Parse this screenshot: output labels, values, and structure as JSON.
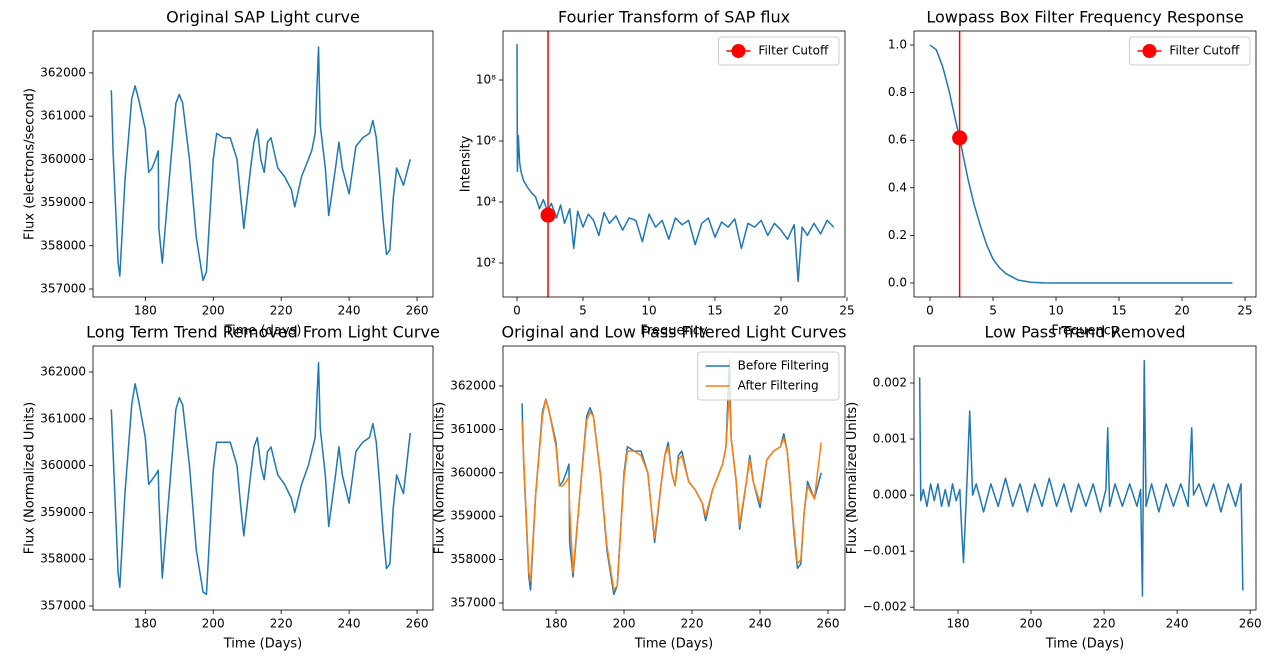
{
  "chart_data": [
    {
      "type": "line",
      "title": "Original SAP Light curve",
      "xlabel": "Time (days)",
      "ylabel": "Flux (electrons/second)",
      "xlim": [
        164.6,
        264.7
      ],
      "ylim": [
        356815,
        362970
      ],
      "xticks": [
        180,
        200,
        220,
        240,
        260
      ],
      "yticks": [
        357000,
        358000,
        359000,
        360000,
        361000,
        362000
      ],
      "series": [
        {
          "color": "#1f77b4",
          "x": [
            170,
            170.5,
            172,
            172.5,
            174,
            176,
            177,
            178,
            180,
            181,
            182,
            183,
            183.8,
            184,
            185,
            187,
            189,
            190,
            191,
            193,
            195,
            197,
            198,
            200,
            201,
            203,
            205,
            207,
            208,
            209,
            211,
            212,
            213,
            214,
            215,
            216,
            217,
            219,
            221,
            223,
            224,
            226,
            228,
            229,
            230,
            231,
            231.5,
            233,
            234,
            236,
            237,
            238,
            240,
            242,
            244,
            246,
            247,
            248,
            249,
            250,
            251,
            252,
            253,
            254,
            256,
            258
          ],
          "values": [
            361600,
            360200,
            357600,
            357300,
            359500,
            361400,
            361700,
            361400,
            360700,
            359700,
            359800,
            360000,
            360200,
            358400,
            357600,
            359500,
            361300,
            361500,
            361300,
            360000,
            358200,
            357200,
            357400,
            360000,
            360600,
            360500,
            360500,
            360000,
            359200,
            358400,
            359800,
            360400,
            360700,
            360000,
            359700,
            360400,
            360500,
            359800,
            359600,
            359300,
            358900,
            359600,
            360000,
            360200,
            360600,
            362600,
            360800,
            359800,
            358700,
            359800,
            360400,
            359800,
            359200,
            360300,
            360500,
            360600,
            360900,
            360500,
            359600,
            358600,
            357800,
            357900,
            359100,
            359800,
            359400,
            360000
          ]
        }
      ]
    },
    {
      "type": "line",
      "title": "Fourier Transform of SAP flux",
      "xlabel": "Frequency",
      "ylabel": "Intensity",
      "yscale": "log",
      "xlim": [
        -1.06,
        24.85
      ],
      "ylim": [
        7.67,
        4050000000
      ],
      "xticks": [
        0,
        5,
        10,
        15,
        20,
        25
      ],
      "yticks": [
        {
          "value": 100,
          "label": "10²"
        },
        {
          "value": 10000,
          "label": "10⁴"
        },
        {
          "value": 1000000,
          "label": "10⁶"
        },
        {
          "value": 100000000,
          "label": "10⁸"
        }
      ],
      "vline": 2.35,
      "vline_color": "red",
      "legend": "upper right",
      "series": [
        {
          "color": "#1f77b4",
          "x": [
            0,
            0.03,
            0.1,
            0.2,
            0.3,
            0.5,
            0.8,
            1.1,
            1.4,
            1.7,
            2.0,
            2.3,
            2.6,
            3.0,
            3.3,
            3.6,
            4.0,
            4.3,
            4.6,
            5.0,
            5.4,
            5.8,
            6.2,
            6.6,
            7.0,
            7.5,
            8,
            8.5,
            9,
            9.5,
            10,
            10.5,
            11,
            11.5,
            12,
            12.5,
            13,
            13.5,
            14,
            14.5,
            15,
            15.5,
            16,
            16.5,
            17,
            17.5,
            18,
            18.5,
            19,
            19.5,
            20,
            20.5,
            21,
            21.3,
            21.6,
            22,
            22.5,
            23,
            23.5,
            24
          ],
          "values": [
            1500000000,
            100000,
            1500000,
            200000,
            100000,
            50000,
            30000,
            20000,
            15000,
            6000,
            12000,
            5000,
            9000,
            3000,
            8000,
            2000,
            6000,
            300,
            5000,
            1500,
            4000,
            2500,
            800,
            4500,
            2000,
            3500,
            1200,
            3000,
            2500,
            500,
            4000,
            1500,
            2500,
            600,
            3000,
            1800,
            2500,
            400,
            2000,
            3000,
            700,
            2200,
            1500,
            2800,
            300,
            2000,
            1500,
            2500,
            800,
            2000,
            1200,
            600,
            1800,
            25,
            1500,
            800,
            2000,
            900,
            2500,
            1500
          ]
        },
        {
          "name": "Filter Cutoff",
          "color": "red",
          "marker": "o",
          "x": [
            2.35
          ],
          "values": [
            3700
          ]
        }
      ]
    },
    {
      "type": "line",
      "title": "Lowpass Box Filter Frequency Response",
      "xlabel": "Frequency",
      "xlim": [
        -1.27,
        25.87
      ],
      "ylim": [
        -0.059,
        1.059
      ],
      "xticks": [
        0,
        5,
        10,
        15,
        20,
        25
      ],
      "yticks": [
        {
          "value": 0,
          "label": "0.0"
        },
        0.2,
        0.4,
        0.6,
        0.8,
        {
          "value": 1,
          "label": "1.0"
        }
      ],
      "vline": 2.35,
      "vline_color": "red",
      "legend": "upper right",
      "series": [
        {
          "color": "#1f77b4",
          "x": [
            0,
            0.5,
            1,
            1.5,
            2,
            2.5,
            3,
            3.5,
            4,
            4.5,
            5,
            5.5,
            6,
            7,
            8,
            9,
            10,
            15,
            20,
            24
          ],
          "values": [
            1,
            0.98,
            0.91,
            0.81,
            0.69,
            0.57,
            0.44,
            0.33,
            0.24,
            0.16,
            0.1,
            0.065,
            0.04,
            0.012,
            0.003,
            0.0005,
            0,
            0,
            0,
            0
          ]
        },
        {
          "name": "Filter Cutoff",
          "color": "red",
          "marker": "o",
          "x": [
            2.35
          ],
          "values": [
            0.61
          ]
        }
      ]
    },
    {
      "type": "line",
      "title": "Long Term Trend Removed From Light Curve",
      "xlabel": "Time (Days)",
      "ylabel": "Flux (Normalized Units)",
      "xlim": [
        164.6,
        264.7
      ],
      "ylim": [
        356915,
        362556
      ],
      "xticks": [
        180,
        200,
        220,
        240,
        260
      ],
      "yticks": [
        357000,
        358000,
        359000,
        360000,
        361000,
        362000
      ],
      "series": [
        {
          "color": "#1f77b4",
          "x": [
            170,
            170.5,
            172,
            172.5,
            174,
            176,
            177,
            178,
            180,
            181,
            182,
            183,
            183.8,
            184,
            185,
            187,
            189,
            190,
            191,
            193,
            195,
            197,
            198,
            200,
            201,
            203,
            205,
            207,
            208,
            209,
            211,
            212,
            213,
            214,
            215,
            216,
            217,
            219,
            221,
            223,
            224,
            226,
            228,
            229,
            230,
            231,
            231.5,
            233,
            234,
            236,
            237,
            238,
            240,
            242,
            244,
            246,
            247,
            248,
            249,
            250,
            251,
            252,
            253,
            254,
            256,
            258
          ],
          "values": [
            361200,
            360300,
            357700,
            357400,
            359400,
            361300,
            361750,
            361400,
            360600,
            359600,
            359700,
            359800,
            359900,
            359300,
            357600,
            359400,
            361200,
            361450,
            361300,
            360000,
            358200,
            357300,
            357250,
            359900,
            360500,
            360500,
            360500,
            360000,
            359200,
            358500,
            359800,
            360400,
            360600,
            360000,
            359700,
            360300,
            360400,
            359800,
            359600,
            359300,
            359000,
            359600,
            360000,
            360300,
            360600,
            362200,
            360800,
            359800,
            358700,
            359800,
            360400,
            359800,
            359200,
            360300,
            360500,
            360600,
            360900,
            360500,
            359600,
            358600,
            357800,
            357900,
            359100,
            359800,
            359400,
            360700
          ]
        }
      ]
    },
    {
      "type": "line",
      "title": "Original and Low Pass Filtered Light Curves",
      "xlabel": "Time (Days)",
      "ylabel": "Flux (Normalized Units)",
      "xlim": [
        164.4,
        265
      ],
      "ylim": [
        356839,
        362922
      ],
      "xticks": [
        180,
        200,
        220,
        240,
        260
      ],
      "yticks": [
        357000,
        358000,
        359000,
        360000,
        361000,
        362000
      ],
      "legend": "upper right",
      "series": [
        {
          "name": "Before Filtering",
          "color": "#1f77b4",
          "x": [
            170,
            170.5,
            172,
            172.5,
            174,
            176,
            177,
            178,
            180,
            181,
            182,
            183,
            183.8,
            184,
            185,
            187,
            189,
            190,
            191,
            193,
            195,
            197,
            198,
            200,
            201,
            203,
            205,
            207,
            208,
            209,
            211,
            212,
            213,
            214,
            215,
            216,
            217,
            219,
            221,
            223,
            224,
            226,
            228,
            229,
            230,
            231,
            231.5,
            233,
            234,
            236,
            237,
            238,
            240,
            242,
            244,
            246,
            247,
            248,
            249,
            250,
            251,
            252,
            253,
            254,
            256,
            258
          ],
          "values": [
            361600,
            360200,
            357600,
            357300,
            359500,
            361400,
            361700,
            361400,
            360700,
            359700,
            359800,
            360000,
            360200,
            358400,
            357600,
            359500,
            361300,
            361500,
            361300,
            360000,
            358200,
            357200,
            357400,
            360000,
            360600,
            360500,
            360500,
            360000,
            359200,
            358400,
            359800,
            360400,
            360700,
            360000,
            359700,
            360400,
            360500,
            359800,
            359600,
            359300,
            358900,
            359600,
            360000,
            360200,
            360600,
            362600,
            360800,
            359800,
            358700,
            359800,
            360400,
            359800,
            359200,
            360300,
            360500,
            360600,
            360900,
            360500,
            359600,
            358600,
            357800,
            357900,
            359100,
            359800,
            359400,
            360000
          ]
        },
        {
          "name": "After Filtering",
          "color": "#ff7f0e",
          "x": [
            170,
            170.5,
            172,
            172.5,
            174,
            176,
            177,
            178,
            180,
            181,
            182,
            183,
            183.8,
            184,
            185,
            187,
            189,
            190,
            191,
            193,
            195,
            197,
            198,
            200,
            201,
            203,
            205,
            207,
            208,
            209,
            211,
            212,
            213,
            214,
            215,
            216,
            217,
            219,
            221,
            223,
            224,
            226,
            228,
            229,
            230,
            231,
            231.5,
            233,
            234,
            236,
            237,
            238,
            240,
            242,
            244,
            246,
            247,
            248,
            249,
            250,
            251,
            252,
            253,
            254,
            256,
            258
          ],
          "values": [
            361200,
            360300,
            357700,
            357500,
            359500,
            361300,
            361700,
            361400,
            360600,
            359700,
            359700,
            359800,
            359900,
            359200,
            357700,
            359500,
            361200,
            361400,
            361300,
            360000,
            358300,
            357300,
            357400,
            359900,
            360500,
            360500,
            360400,
            360000,
            359200,
            358500,
            359800,
            360400,
            360600,
            360000,
            359700,
            360300,
            360400,
            359800,
            359600,
            359300,
            359000,
            359600,
            360000,
            360200,
            360600,
            361900,
            360800,
            359800,
            358800,
            359800,
            360300,
            359800,
            359300,
            360300,
            360500,
            360600,
            360800,
            360500,
            359600,
            358700,
            357900,
            358000,
            359100,
            359700,
            359400,
            360700
          ]
        }
      ]
    },
    {
      "type": "line",
      "title": "Low Pass Trend Removed",
      "xlabel": "Time (Days)",
      "ylabel": "Flux (Normalized Units)",
      "xlim": [
        167.95,
        261.6
      ],
      "ylim": [
        -0.00205,
        0.00266
      ],
      "xticks": [
        180,
        200,
        220,
        240,
        260
      ],
      "yticks": [
        {
          "value": -0.002,
          "label": "−0.002"
        },
        {
          "value": -0.001,
          "label": "−0.001"
        },
        {
          "value": 0,
          "label": "0.000"
        },
        0.001,
        0.002
      ],
      "series": [
        {
          "color": "#1f77b4",
          "x": [
            169.5,
            169.8,
            170.5,
            171.5,
            172.5,
            173.5,
            174.5,
            175.5,
            176.5,
            177.5,
            178.5,
            179.5,
            180.5,
            181,
            181.5,
            182.5,
            183.2,
            184,
            185,
            187,
            189,
            191,
            193,
            195,
            197,
            199,
            201,
            203,
            205,
            207,
            209,
            211,
            213,
            215,
            217,
            219,
            220.5,
            221,
            221.5,
            223,
            225,
            227,
            229,
            230,
            230.5,
            231,
            231.5,
            233,
            235,
            237,
            239,
            241,
            243,
            244,
            244.5,
            246,
            248,
            250,
            252,
            254,
            256,
            257.5,
            258
          ],
          "values": [
            0.0021,
            -0.0001,
            0.0001,
            -0.0002,
            0.0002,
            -0.0001,
            0.0002,
            -0.0002,
            0.0001,
            -0.0002,
            0.0002,
            -0.0001,
            0.0001,
            -0.0006,
            -0.0012,
            0.0003,
            0.0015,
            0,
            0.0002,
            -0.0003,
            0.0002,
            -0.0002,
            0.0003,
            -0.0002,
            0.0002,
            -0.0003,
            0.0002,
            -0.0002,
            0.0003,
            -0.0002,
            0.0002,
            -0.0003,
            0.0002,
            -0.0002,
            0.0002,
            -0.0003,
            0.0001,
            0.0012,
            -0.0002,
            0.0002,
            -0.0002,
            0.0002,
            -0.0002,
            0.0001,
            -0.0018,
            0.0024,
            -0.0002,
            0.0002,
            -0.0003,
            0.0002,
            -0.0002,
            0.0002,
            -0.0002,
            0.0012,
            0,
            0.0002,
            -0.0002,
            0.0002,
            -0.0003,
            0.0002,
            -0.0002,
            0.0002,
            -0.0017
          ]
        }
      ]
    }
  ]
}
